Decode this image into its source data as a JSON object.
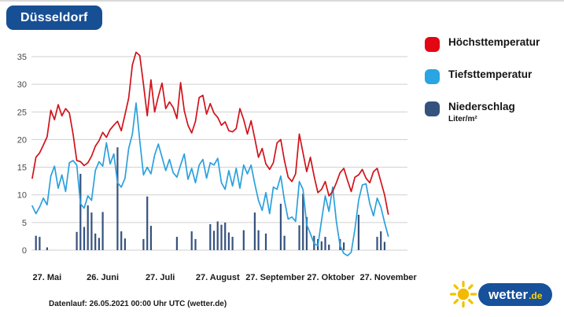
{
  "page": {
    "title_badge": "Düsseldorf",
    "datenlauf": "Datenlauf: 26.05.2021 00:00 Uhr UTC (wetter.de)"
  },
  "legend": {
    "items": [
      {
        "label": "Höchsttemperatur",
        "color": "#e30613"
      },
      {
        "label": "Tiefsttemperatur",
        "color": "#29a5e3"
      },
      {
        "label": "Niederschlag",
        "sublabel": "Liter/m²",
        "color": "#35527e"
      }
    ]
  },
  "logo": {
    "brand": "wetter",
    "tld": ".de",
    "pill_color": "#17509b",
    "sun_color": "#f2bb00"
  },
  "chart_data": {
    "type": "line+bar",
    "title": "Düsseldorf",
    "xlabel": "",
    "ylabel": "",
    "x_unit": "day_index",
    "x_step_days": 2,
    "x_tick_labels": [
      "27. Mai",
      "26. Juni",
      "27. Juli",
      "27. August",
      "27. September",
      "27. Oktober",
      "27. November"
    ],
    "x_tick_days": [
      8,
      38,
      69,
      100,
      131,
      161,
      192
    ],
    "y_ticks": [
      0,
      5,
      10,
      15,
      20,
      25,
      30,
      35
    ],
    "ylim": [
      0,
      35
    ],
    "grid": true,
    "legend_position": "right",
    "series": [
      {
        "name": "Höchsttemperatur",
        "type": "line",
        "unit": "°C",
        "color": "#d01219",
        "values": [
          13,
          16.8,
          17.6,
          19,
          20.5,
          25.3,
          23.6,
          26.3,
          24.3,
          25.6,
          24.8,
          21,
          16.2,
          16,
          15.3,
          15.8,
          17,
          18.8,
          19.8,
          21.3,
          20.4,
          21.8,
          22.6,
          23.3,
          21.6,
          24.5,
          27.5,
          33.5,
          35.8,
          35.2,
          30,
          24.3,
          30.8,
          25,
          27.8,
          30.2,
          25.6,
          26.8,
          25.8,
          23.8,
          30.3,
          25.2,
          22.6,
          21.2,
          23.3,
          27.6,
          28,
          24.6,
          26.5,
          24.8,
          24,
          22.6,
          23.2,
          21.6,
          21.4,
          22,
          25.6,
          23.6,
          21,
          23.4,
          20.2,
          16.8,
          18.4,
          15.6,
          14.6,
          15.8,
          19.4,
          20,
          16.2,
          13.2,
          12.4,
          13.8,
          21,
          17.6,
          14.2,
          16.8,
          13.4,
          10.4,
          11,
          12.4,
          9.8,
          10.6,
          12.2,
          14,
          14.8,
          12.6,
          10.6,
          13.2,
          13.6,
          14.6,
          13,
          12.2,
          14.2,
          14.8,
          12.4,
          10,
          6.5
        ]
      },
      {
        "name": "Tiefsttemperatur",
        "type": "line",
        "unit": "°C",
        "color": "#2ba0dd",
        "values": [
          8,
          6.6,
          7.8,
          9.4,
          8.2,
          13.4,
          15.2,
          11.2,
          13.6,
          10.6,
          15.8,
          16.2,
          15.4,
          8.4,
          7.6,
          9.8,
          9,
          14.4,
          16,
          15.2,
          19.4,
          15.6,
          17.4,
          12.2,
          11.4,
          13,
          18.4,
          21,
          26.6,
          19.8,
          13.6,
          15,
          13.8,
          17.2,
          19.2,
          16.8,
          14.4,
          16.4,
          14,
          13.2,
          15.4,
          17.4,
          12.8,
          14.8,
          12.2,
          15.4,
          16.4,
          13,
          15.8,
          15.4,
          16.6,
          12.2,
          11,
          14.4,
          11.6,
          14.8,
          11.2,
          15.4,
          13.8,
          15.4,
          12,
          9,
          7.2,
          10.4,
          6.6,
          11.4,
          11,
          13.4,
          9,
          5.6,
          6,
          5.2,
          12.4,
          11,
          4.6,
          3,
          1.2,
          0.8,
          5.4,
          9.8,
          7,
          11.4,
          5.2,
          0.8,
          -0.6,
          -1,
          -0.4,
          3.8,
          9,
          11.8,
          12,
          8.4,
          6.2,
          9.4,
          7.8,
          5,
          2.5
        ]
      },
      {
        "name": "Niederschlag",
        "type": "bar",
        "unit": "Liter/m²",
        "color": "#35527e",
        "values": [
          0,
          2.6,
          2.4,
          0,
          0.5,
          0,
          0,
          0,
          0,
          0,
          0,
          0,
          3.3,
          13.8,
          4.2,
          8.1,
          6.8,
          3,
          2.2,
          6.9,
          0,
          0,
          0,
          18.6,
          3.4,
          2.1,
          0,
          0,
          0,
          0,
          2,
          9.7,
          4.4,
          0,
          0,
          0,
          0,
          0,
          0,
          2.4,
          0,
          0,
          0,
          3.4,
          2,
          0,
          0,
          0,
          4.7,
          3.5,
          5.2,
          4.6,
          5,
          3.2,
          2.4,
          0,
          0,
          3.6,
          0,
          0,
          6.8,
          3.6,
          0,
          3,
          0,
          0,
          0,
          8.4,
          2.6,
          0,
          0,
          0,
          4.5,
          10.2,
          6,
          0,
          2.6,
          2,
          1.6,
          2.4,
          1,
          0,
          0,
          2,
          1.4,
          0,
          0,
          0,
          6.4,
          0,
          0,
          0,
          0,
          2.4,
          3.4,
          1.5,
          0
        ]
      }
    ]
  }
}
